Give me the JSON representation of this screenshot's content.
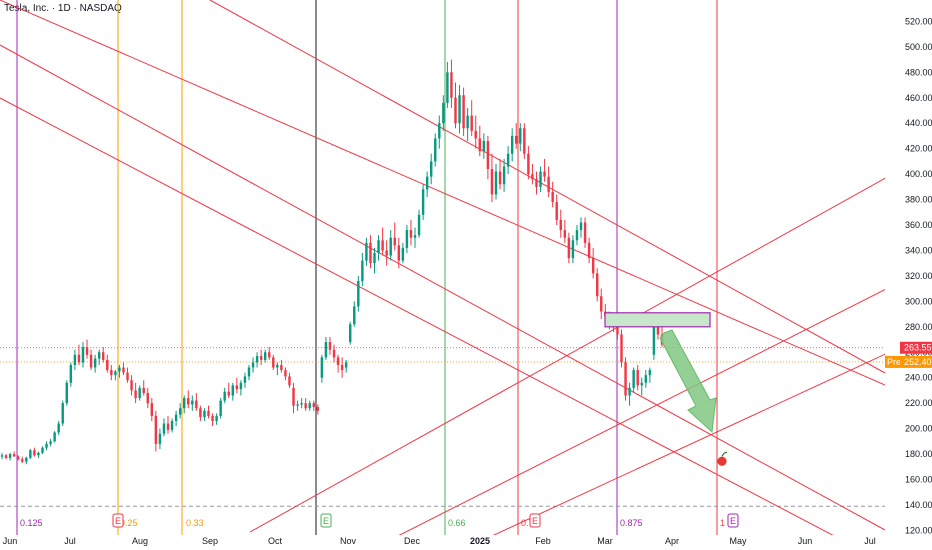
{
  "header": {
    "title": "Tesla, Inc. · 1D · NASDAQ"
  },
  "chart_data": {
    "type": "candlestick",
    "symbol": "Tesla, Inc.",
    "interval": "1D",
    "exchange": "NASDAQ",
    "y_ticks": [
      120,
      140,
      160,
      180,
      200,
      220,
      240,
      260,
      280,
      300,
      320,
      340,
      360,
      380,
      400,
      420,
      440,
      460,
      480,
      500,
      520
    ],
    "ylim": [
      115,
      527
    ],
    "x_ticks": [
      "Jun",
      "Jul",
      "Aug",
      "Sep",
      "Oct",
      "Nov",
      "Dec",
      "2025",
      "Feb",
      "Mar",
      "Apr",
      "May",
      "Jun",
      "Jul"
    ],
    "last_price": {
      "value": 263.55,
      "label": "263.55",
      "color": "#f23645"
    },
    "premarket": {
      "value": 252.4,
      "label": "252.40",
      "badge": "Pre",
      "color": "#ff9800"
    },
    "dashed_level": {
      "value": 139,
      "color": "#9598a1"
    },
    "fib_time_labels": [
      {
        "text": "0.125",
        "color": "#9c27b0"
      },
      {
        "text": "0.25",
        "color": "#ff9800"
      },
      {
        "text": "0.33",
        "color": "#ff9800"
      },
      {
        "text": "0.66",
        "color": "#4caf50"
      },
      {
        "text": "0.75",
        "color": "#f23645"
      },
      {
        "text": "0.875",
        "color": "#9c27b0"
      },
      {
        "text": "1",
        "color": "#f23645"
      }
    ],
    "earnings_markers": [
      {
        "text": "E",
        "color": "#f23645"
      },
      {
        "text": "E",
        "color": "#4caf50"
      },
      {
        "text": "E",
        "color": "#f23645"
      },
      {
        "text": "E",
        "color": "#9c27b0"
      }
    ],
    "zone": {
      "from_price": 291,
      "to_price": 280,
      "fill": "#c8e6c9",
      "border": "#9c27b0"
    },
    "arrow_target": {
      "price": 183
    },
    "colors": {
      "up": "#089981",
      "down": "#f23645",
      "channel": "#f23645"
    },
    "candles": [
      [
        178,
        181,
        176,
        179
      ],
      [
        179,
        180,
        176,
        177
      ],
      [
        177,
        181,
        175,
        180
      ],
      [
        180,
        182,
        178,
        178
      ],
      [
        178,
        179,
        175,
        176
      ],
      [
        176,
        178,
        173,
        174
      ],
      [
        174,
        178,
        172,
        177
      ],
      [
        177,
        184,
        176,
        183
      ],
      [
        183,
        185,
        178,
        179
      ],
      [
        179,
        182,
        177,
        181
      ],
      [
        181,
        186,
        180,
        185
      ],
      [
        185,
        190,
        183,
        188
      ],
      [
        188,
        192,
        186,
        190
      ],
      [
        190,
        198,
        189,
        197
      ],
      [
        197,
        206,
        195,
        204
      ],
      [
        204,
        222,
        202,
        220
      ],
      [
        220,
        238,
        218,
        236
      ],
      [
        236,
        252,
        233,
        250
      ],
      [
        250,
        262,
        246,
        258
      ],
      [
        258,
        266,
        250,
        252
      ],
      [
        252,
        268,
        248,
        264
      ],
      [
        264,
        270,
        255,
        258
      ],
      [
        258,
        262,
        246,
        248
      ],
      [
        248,
        258,
        244,
        255
      ],
      [
        255,
        262,
        250,
        260
      ],
      [
        260,
        264,
        252,
        254
      ],
      [
        254,
        258,
        244,
        246
      ],
      [
        246,
        250,
        238,
        242
      ],
      [
        242,
        246,
        238,
        245
      ],
      [
        245,
        250,
        240,
        248
      ],
      [
        248,
        252,
        242,
        244
      ],
      [
        244,
        248,
        236,
        238
      ],
      [
        238,
        242,
        226,
        230
      ],
      [
        230,
        236,
        220,
        224
      ],
      [
        224,
        234,
        222,
        232
      ],
      [
        232,
        238,
        226,
        228
      ],
      [
        228,
        232,
        216,
        220
      ],
      [
        220,
        224,
        206,
        210
      ],
      [
        210,
        214,
        182,
        188
      ],
      [
        188,
        200,
        184,
        196
      ],
      [
        196,
        208,
        194,
        204
      ],
      [
        204,
        210,
        196,
        199
      ],
      [
        199,
        208,
        197,
        206
      ],
      [
        206,
        214,
        202,
        211
      ],
      [
        211,
        220,
        208,
        216
      ],
      [
        216,
        226,
        212,
        224
      ],
      [
        224,
        230,
        216,
        219
      ],
      [
        219,
        226,
        214,
        222
      ],
      [
        222,
        228,
        214,
        216
      ],
      [
        216,
        218,
        206,
        209
      ],
      [
        209,
        216,
        206,
        214
      ],
      [
        214,
        218,
        208,
        210
      ],
      [
        210,
        212,
        202,
        206
      ],
      [
        206,
        212,
        203,
        210
      ],
      [
        210,
        224,
        208,
        222
      ],
      [
        222,
        232,
        220,
        229
      ],
      [
        229,
        236,
        224,
        226
      ],
      [
        226,
        236,
        222,
        234
      ],
      [
        234,
        240,
        228,
        231
      ],
      [
        231,
        238,
        226,
        236
      ],
      [
        236,
        244,
        232,
        241
      ],
      [
        241,
        250,
        238,
        248
      ],
      [
        248,
        256,
        244,
        252
      ],
      [
        252,
        260,
        248,
        257
      ],
      [
        257,
        262,
        250,
        254
      ],
      [
        254,
        262,
        252,
        260
      ],
      [
        260,
        264,
        254,
        256
      ],
      [
        256,
        258,
        246,
        248
      ],
      [
        248,
        252,
        242,
        250
      ],
      [
        250,
        254,
        244,
        246
      ],
      [
        246,
        248,
        238,
        241
      ],
      [
        241,
        244,
        232,
        234
      ],
      [
        232,
        236,
        212,
        218
      ],
      [
        218,
        222,
        214,
        219
      ],
      [
        219,
        224,
        216,
        220
      ],
      [
        220,
        224,
        214,
        216
      ],
      [
        216,
        222,
        214,
        220
      ],
      [
        220,
        222,
        214,
        217
      ],
      [
        217,
        219,
        211,
        214
      ],
      [
        240,
        258,
        236,
        256
      ],
      [
        256,
        272,
        254,
        268
      ],
      [
        268,
        272,
        258,
        262
      ],
      [
        262,
        266,
        252,
        256
      ],
      [
        256,
        258,
        244,
        250
      ],
      [
        250,
        256,
        240,
        246
      ],
      [
        248,
        254,
        244,
        252
      ],
      [
        268,
        284,
        266,
        282
      ],
      [
        282,
        300,
        280,
        296
      ],
      [
        296,
        320,
        292,
        316
      ],
      [
        316,
        338,
        312,
        332
      ],
      [
        332,
        350,
        328,
        346
      ],
      [
        346,
        352,
        326,
        330
      ],
      [
        330,
        342,
        322,
        338
      ],
      [
        338,
        352,
        332,
        348
      ],
      [
        348,
        358,
        336,
        340
      ],
      [
        340,
        348,
        328,
        336
      ],
      [
        336,
        356,
        332,
        350
      ],
      [
        350,
        362,
        340,
        344
      ],
      [
        344,
        350,
        326,
        332
      ],
      [
        332,
        346,
        330,
        342
      ],
      [
        342,
        360,
        338,
        356
      ],
      [
        356,
        364,
        344,
        350
      ],
      [
        350,
        358,
        342,
        352
      ],
      [
        352,
        372,
        350,
        368
      ],
      [
        368,
        392,
        364,
        388
      ],
      [
        388,
        402,
        382,
        398
      ],
      [
        398,
        416,
        392,
        410
      ],
      [
        410,
        432,
        406,
        428
      ],
      [
        428,
        446,
        420,
        440
      ],
      [
        440,
        462,
        434,
        456
      ],
      [
        456,
        488,
        452,
        480
      ],
      [
        480,
        490,
        452,
        460
      ],
      [
        460,
        472,
        436,
        440
      ],
      [
        440,
        470,
        432,
        462
      ],
      [
        462,
        468,
        430,
        436
      ],
      [
        436,
        452,
        426,
        446
      ],
      [
        446,
        458,
        430,
        434
      ],
      [
        434,
        446,
        420,
        428
      ],
      [
        428,
        438,
        414,
        418
      ],
      [
        418,
        432,
        412,
        426
      ],
      [
        426,
        430,
        396,
        404
      ],
      [
        404,
        416,
        378,
        384
      ],
      [
        384,
        408,
        380,
        402
      ],
      [
        402,
        412,
        388,
        392
      ],
      [
        392,
        412,
        386,
        406
      ],
      [
        406,
        422,
        400,
        416
      ],
      [
        416,
        436,
        410,
        430
      ],
      [
        430,
        440,
        420,
        424
      ],
      [
        424,
        440,
        418,
        436
      ],
      [
        436,
        440,
        412,
        416
      ],
      [
        416,
        422,
        396,
        400
      ],
      [
        400,
        408,
        392,
        396
      ],
      [
        396,
        402,
        384,
        390
      ],
      [
        390,
        406,
        386,
        402
      ],
      [
        402,
        412,
        394,
        398
      ],
      [
        398,
        406,
        382,
        386
      ],
      [
        386,
        394,
        374,
        378
      ],
      [
        378,
        384,
        360,
        364
      ],
      [
        364,
        372,
        350,
        356
      ],
      [
        356,
        364,
        346,
        350
      ],
      [
        350,
        354,
        330,
        334
      ],
      [
        334,
        352,
        330,
        348
      ],
      [
        348,
        360,
        344,
        356
      ],
      [
        356,
        366,
        350,
        362
      ],
      [
        362,
        366,
        342,
        346
      ],
      [
        346,
        350,
        330,
        334
      ],
      [
        334,
        342,
        318,
        322
      ],
      [
        322,
        326,
        300,
        304
      ],
      [
        304,
        310,
        286,
        292
      ],
      [
        292,
        298,
        282,
        288
      ],
      [
        288,
        292,
        278,
        282
      ],
      [
        282,
        288,
        276,
        286
      ],
      [
        286,
        290,
        270,
        274
      ],
      [
        274,
        278,
        248,
        252
      ],
      [
        252,
        256,
        222,
        226
      ],
      [
        226,
        236,
        218,
        232
      ],
      [
        232,
        248,
        228,
        246
      ],
      [
        246,
        250,
        230,
        234
      ],
      [
        234,
        240,
        226,
        236
      ],
      [
        236,
        246,
        232,
        242
      ],
      [
        242,
        248,
        236,
        246
      ],
      [
        258,
        288,
        254,
        284
      ],
      [
        284,
        290,
        270,
        274
      ],
      [
        274,
        280,
        264,
        266
      ]
    ]
  }
}
